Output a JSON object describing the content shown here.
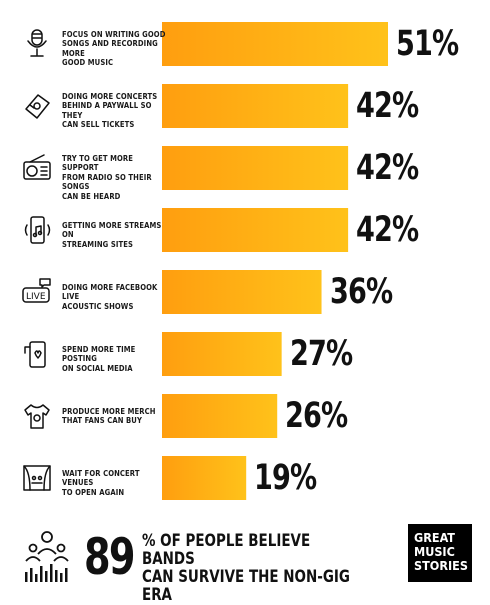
{
  "chart_data": {
    "type": "bar",
    "orientation": "horizontal",
    "categories": [
      "FOCUS ON WRITING GOOD SONGS AND RECORDING MORE GOOD MUSIC",
      "DOING MORE CONCERTS BEHIND A PAYWALL SO THEY CAN SELL TICKETS",
      "TRY TO GET MORE SUPPORT FROM RADIO SO THEIR SONGS CAN BE HEARD",
      "GETTING MORE STREAMS ON STREAMING SITES",
      "DOING MORE FACEBOOK LIVE ACOUSTIC SHOWS",
      "SPEND MORE TIME POSTING ON SOCIAL MEDIA",
      "PRODUCE MORE MERCH THAT FANS CAN BUY",
      "WAIT FOR CONCERT VENUES TO OPEN AGAIN"
    ],
    "values": [
      51,
      42,
      42,
      42,
      36,
      27,
      26,
      19
    ],
    "value_labels": [
      "51%",
      "42%",
      "42%",
      "42%",
      "36%",
      "27%",
      "26%",
      "19%"
    ],
    "icons": [
      "microphone-icon",
      "ticket-icon",
      "radio-icon",
      "smartphone-music-icon",
      "live-chat-icon",
      "phone-like-icon",
      "tshirt-icon",
      "stage-icon"
    ],
    "bar_color_start": "#ff9e0f",
    "bar_color_end": "#ffc21a",
    "xlim": [
      0,
      51
    ]
  },
  "footer": {
    "number": "89",
    "text_line1": "% OF PEOPLE BELIEVE BANDS",
    "text_line2": "CAN SURVIVE THE NON-GIG ERA",
    "icon": "audience-icon"
  },
  "logo": {
    "line1": "GREAT",
    "line2": "MUSIC",
    "line3": "STORIES"
  }
}
